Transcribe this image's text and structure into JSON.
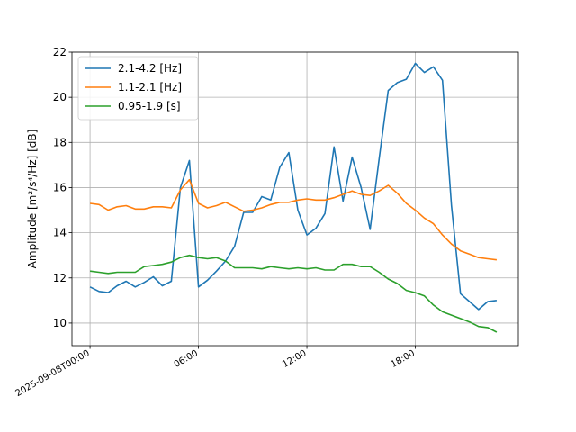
{
  "chart_data": {
    "type": "line",
    "ylabel": "Amplitude [m²/s⁴/Hz] [dB]",
    "ylim": [
      9,
      22
    ],
    "xlim_hours": [
      -1,
      23.7
    ],
    "grid": true,
    "legend_position": "top-left",
    "x_ticks": [
      {
        "hour": 0,
        "label": "2025-09-08T00:00"
      },
      {
        "hour": 6,
        "label": "06:00"
      },
      {
        "hour": 12,
        "label": "12:00"
      },
      {
        "hour": 18,
        "label": "18:00"
      }
    ],
    "y_ticks": [
      10,
      12,
      14,
      16,
      18,
      20,
      22
    ],
    "x_hours": [
      0,
      0.5,
      1,
      1.5,
      2,
      2.5,
      3,
      3.5,
      4,
      4.5,
      5,
      5.5,
      6,
      6.5,
      7,
      7.5,
      8,
      8.5,
      9,
      9.5,
      10,
      10.5,
      11,
      11.5,
      12,
      12.5,
      13,
      13.5,
      14,
      14.5,
      15,
      15.5,
      16,
      16.5,
      17,
      17.5,
      18,
      18.5,
      19,
      19.5,
      20,
      20.5,
      21,
      21.5,
      22,
      22.5
    ],
    "series": [
      {
        "name": "2.1-4.2 [Hz]",
        "color": "#1f77b4",
        "values": [
          11.6,
          11.4,
          11.35,
          11.65,
          11.85,
          11.6,
          11.8,
          12.05,
          11.65,
          11.85,
          16.0,
          17.2,
          11.6,
          11.9,
          12.3,
          12.75,
          13.4,
          14.9,
          14.9,
          15.6,
          15.45,
          16.9,
          17.55,
          15.0,
          13.9,
          14.2,
          14.85,
          17.8,
          15.4,
          17.35,
          16.0,
          14.15,
          17.3,
          20.3,
          20.65,
          20.8,
          21.5,
          21.1,
          21.35,
          20.75,
          15.2,
          11.3,
          10.95,
          10.6,
          10.95,
          11.0
        ]
      },
      {
        "name": "1.1-2.1 [Hz]",
        "color": "#ff7f0e",
        "values": [
          15.3,
          15.25,
          15.0,
          15.15,
          15.2,
          15.05,
          15.05,
          15.15,
          15.15,
          15.1,
          15.9,
          16.35,
          15.3,
          15.1,
          15.2,
          15.35,
          15.15,
          14.95,
          15.0,
          15.1,
          15.25,
          15.35,
          15.35,
          15.45,
          15.5,
          15.45,
          15.45,
          15.55,
          15.7,
          15.85,
          15.7,
          15.65,
          15.85,
          16.1,
          15.75,
          15.3,
          15.0,
          14.65,
          14.4,
          13.9,
          13.5,
          13.2,
          13.05,
          12.9,
          12.85,
          12.8
        ]
      },
      {
        "name": "0.95-1.9 [s]",
        "color": "#2ca02c",
        "values": [
          12.3,
          12.25,
          12.2,
          12.25,
          12.25,
          12.25,
          12.5,
          12.55,
          12.6,
          12.7,
          12.9,
          13.0,
          12.9,
          12.85,
          12.9,
          12.75,
          12.45,
          12.45,
          12.45,
          12.4,
          12.5,
          12.45,
          12.4,
          12.45,
          12.4,
          12.45,
          12.35,
          12.35,
          12.6,
          12.6,
          12.5,
          12.5,
          12.25,
          11.95,
          11.75,
          11.45,
          11.35,
          11.2,
          10.8,
          10.5,
          10.35,
          10.2,
          10.05,
          9.85,
          9.8,
          9.6
        ]
      }
    ]
  }
}
